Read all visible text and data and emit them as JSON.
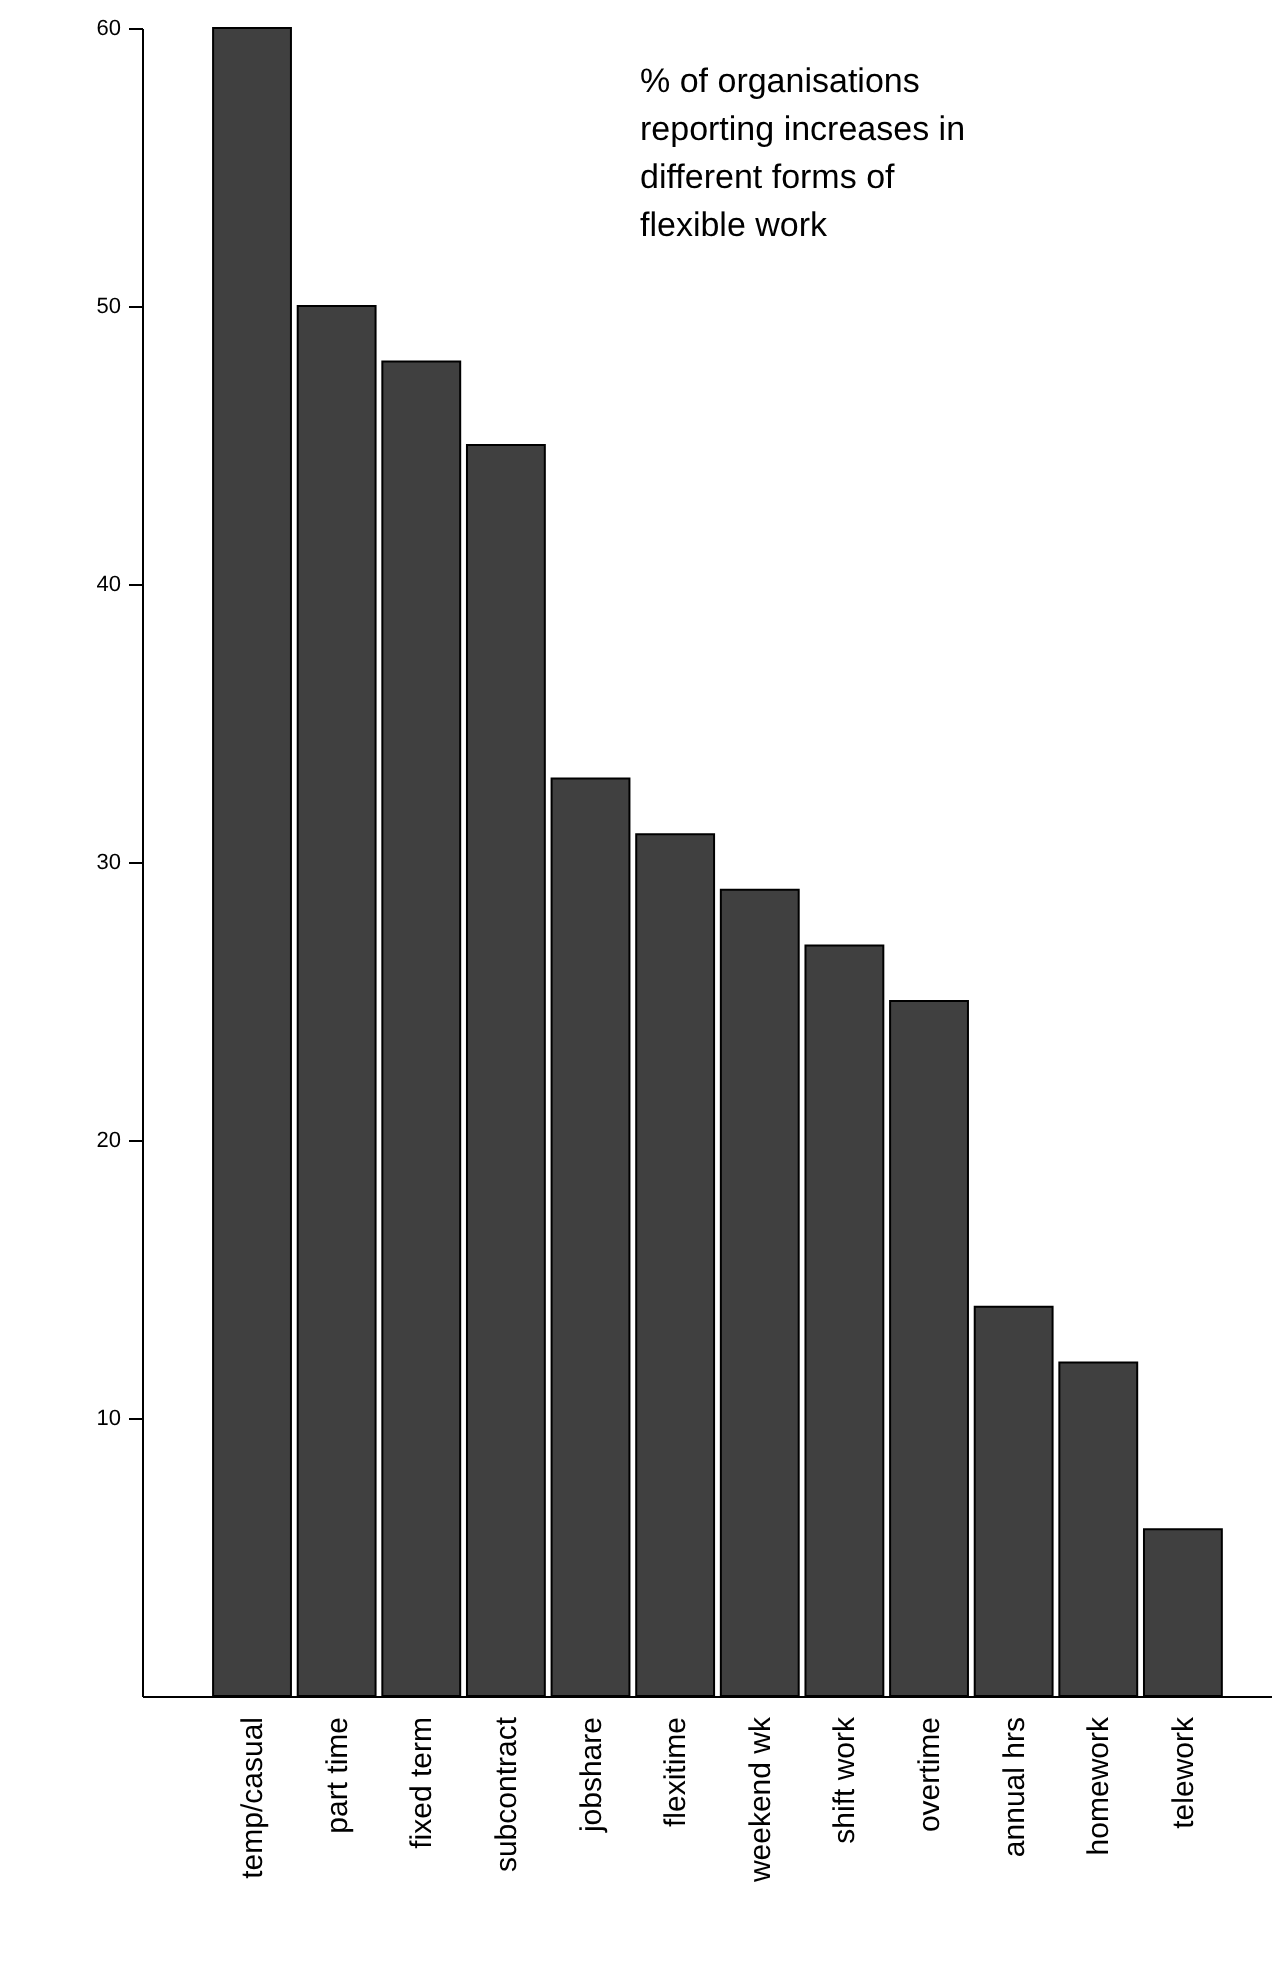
{
  "chart_data": {
    "type": "bar",
    "title": "% of organisations reporting increases in different forms of flexible work",
    "categories": [
      "temp/casual",
      "part time",
      "fixed term",
      "subcontract",
      "jobshare",
      "flexitime",
      "weekend wk",
      "shift work",
      "overtime",
      "annual hrs",
      "homework",
      "telework"
    ],
    "values": [
      60,
      50,
      48,
      45,
      33,
      31,
      29,
      27,
      25,
      14,
      12,
      6
    ],
    "color": "#404040",
    "ylim": [
      0,
      60
    ],
    "yticks": [
      10,
      20,
      30,
      40,
      50,
      60
    ]
  }
}
